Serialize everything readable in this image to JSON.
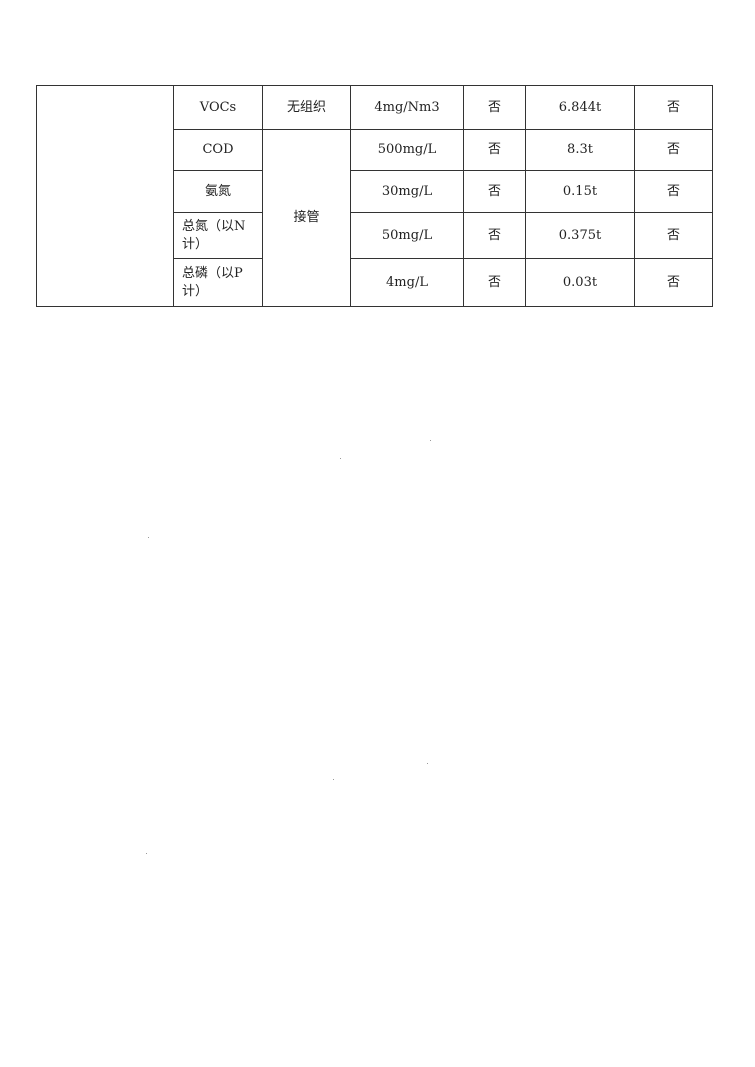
{
  "table": {
    "rows": [
      {
        "pollutant": "VOCs",
        "method": "无组织",
        "standard": "4mg/Nm3",
        "exceed": "否",
        "amount": "6.844t",
        "over_total": "否"
      },
      {
        "pollutant": "COD",
        "method": "接管",
        "standard": "500mg/L",
        "exceed": "否",
        "amount": "8.3t",
        "over_total": "否"
      },
      {
        "pollutant": "氨氮",
        "standard": "30mg/L",
        "exceed": "否",
        "amount": "0.15t",
        "over_total": "否"
      },
      {
        "pollutant": "总氮（以N计）",
        "standard": "50mg/L",
        "exceed": "否",
        "amount": "0.375t",
        "over_total": "否"
      },
      {
        "pollutant": "总磷（以P计）",
        "standard": "4mg/L",
        "exceed": "否",
        "amount": "0.03t",
        "over_total": "否"
      }
    ]
  }
}
